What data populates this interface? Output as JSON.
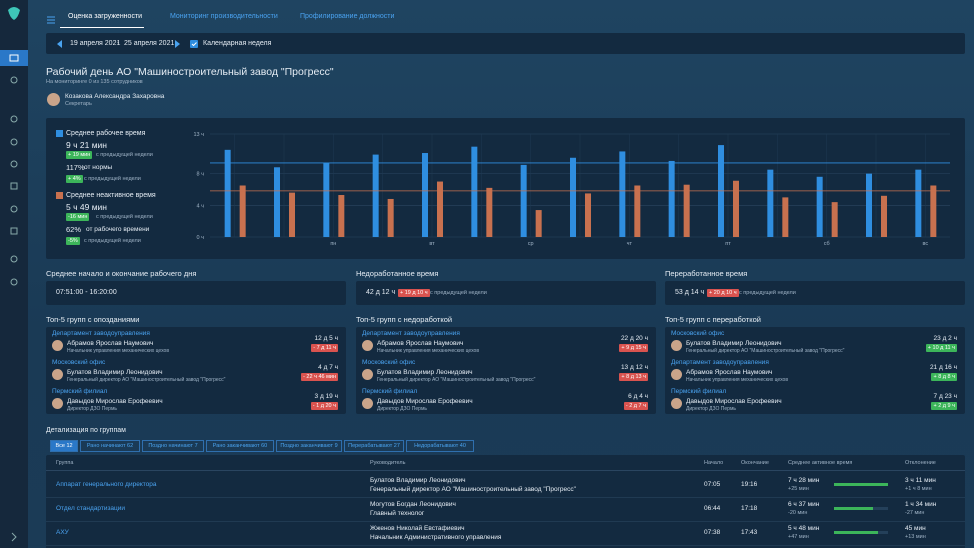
{
  "tabs": [
    "Оценка загруженности",
    "Мониторинг производительности",
    "Профилирование должности"
  ],
  "period": {
    "from": "19 апреля 2021",
    "sep": "-",
    "to": "25 апреля 2021",
    "checkbox": "Календарная неделя"
  },
  "header": {
    "title": "Рабочий день АО \"Машиностроительный завод \"Прогресс\"",
    "subtitle": "На мониторинге 0 из 135 сотрудников",
    "user": "Козакова Александра Захаровна",
    "role": "Секретарь"
  },
  "chart_summary": [
    {
      "value": "9 ч 21 мин",
      "change": "+ 19 мин",
      "change_text": "с предыдущей недели",
      "share": "117%",
      "share_text": "от нормы",
      "share_change": "+ 4%",
      "share_change_text": "с предыдущей недели"
    },
    {
      "value": "5 ч 49 мин",
      "change": "-16 мин",
      "change_text": "с предыдущей недели",
      "share": "62%",
      "share_text": "от рабочего времени",
      "share_change": "-5%",
      "share_change_text": "с предыдущей недели"
    }
  ],
  "chart_data": {
    "type": "bar",
    "categories": [
      null,
      null,
      "пн",
      null,
      "вт",
      null,
      "ср",
      null,
      "чт",
      null,
      "пт",
      null,
      "сб",
      null,
      "вс"
    ],
    "series": [
      {
        "name": "Среднее рабочее время",
        "color": "#2f8ee0",
        "average": 9.35,
        "values": [
          11.0,
          8.8,
          9.4,
          10.4,
          10.6,
          11.4,
          9.1,
          10.0,
          10.8,
          9.6,
          11.6,
          8.5,
          7.6,
          8.0,
          8.5
        ]
      },
      {
        "name": "Среднее неактивное время",
        "color": "#c8714f",
        "average": 5.82,
        "values": [
          6.5,
          5.6,
          5.3,
          4.8,
          7.0,
          6.2,
          3.4,
          5.5,
          6.5,
          6.6,
          7.1,
          5.0,
          4.4,
          5.2,
          6.5
        ]
      }
    ],
    "ylim": [
      0,
      13
    ],
    "yticks": [
      {
        "value": 0,
        "label": "0 ч"
      },
      {
        "value": 4,
        "label": "4 ч"
      },
      {
        "value": 8,
        "label": "8 ч"
      },
      {
        "value": 13,
        "label": "13 ч"
      }
    ],
    "grid": true
  },
  "stats": [
    {
      "title": "Среднее начало и окончание рабочего дня",
      "value": "07:51:00 - 16:20:00"
    },
    {
      "title": "Недоработанное время",
      "value": "42 д 12 ч",
      "change": "+ 19 д 10 ч",
      "change_text": "с предыдущей недели"
    },
    {
      "title": "Переработанное время",
      "value": "53 д 14 ч",
      "change": "+ 20 д 10 ч",
      "change_text": "с предыдущей недели"
    }
  ],
  "top5": [
    {
      "title": "Топ-5 групп с опозданиями",
      "items": [
        {
          "group": "Департамент заводоуправления",
          "name": "Абрамов Ярослав Наумович",
          "position": "Начальник управления механических цехов",
          "value": "12 д 5 ч",
          "change": "- 7 д 11 ч",
          "tone": "negative"
        },
        {
          "group": "Московский офис",
          "name": "Булатов Владимир Леонидович",
          "position": "Генеральный директор АО \"Машиностроительный завод \"Прогресс\"",
          "value": "4 д 7 ч",
          "change": "- 22 ч 46 мин",
          "tone": "negative"
        },
        {
          "group": "Пермский филиал",
          "name": "Давыдов Мирослав Ерофеевич",
          "position": "Директор ДЗО Пермь",
          "value": "3 д 19 ч",
          "change": "- 1 д 20 ч",
          "tone": "negative"
        }
      ]
    },
    {
      "title": "Топ-5 групп с недоработкой",
      "items": [
        {
          "group": "Департамент заводоуправления",
          "name": "Абрамов Ярослав Наумович",
          "position": "Начальник управления механических цехов",
          "value": "22 д 20 ч",
          "change": "+ 9 д 15 ч",
          "tone": "negative"
        },
        {
          "group": "Московский офис",
          "name": "Булатов Владимир Леонидович",
          "position": "Генеральный директор АО \"Машиностроительный завод \"Прогресс\"",
          "value": "13 д 12 ч",
          "change": "+ 8 д 13 ч",
          "tone": "negative"
        },
        {
          "group": "Пермский филиал",
          "name": "Давыдов Мирослав Ерофеевич",
          "position": "Директор ДЗО Пермь",
          "value": "6 д 4 ч",
          "change": "- 2 д 7 ч",
          "tone": "negative"
        }
      ]
    },
    {
      "title": "Топ-5 групп с переработкой",
      "items": [
        {
          "group": "Московский офис",
          "name": "Булатов Владимир Леонидович",
          "position": "Генеральный директор АО \"Машиностроительный завод \"Прогресс\"",
          "value": "23 д 2 ч",
          "change": "+ 10 д 11 ч",
          "tone": "positive"
        },
        {
          "group": "Департамент заводоуправления",
          "name": "Абрамов Ярослав Наумович",
          "position": "Начальник управления механических цехов",
          "value": "21 д 16 ч",
          "change": "+ 8 д 8 ч",
          "tone": "positive"
        },
        {
          "group": "Пермский филиал",
          "name": "Давыдов Мирослав Ерофеевич",
          "position": "Директор ДЗО Пермь",
          "value": "7 д 23 ч",
          "change": "+ 2 д 9 ч",
          "tone": "positive"
        }
      ]
    }
  ],
  "details": {
    "title": "Детализация по группам",
    "filters": [
      "Все 12",
      "Рано начинают 62",
      "Поздно начинают 7",
      "Рано заканчивают 60",
      "Поздно заканчивают 9",
      "Перерабатывают 27",
      "Недорабатывают 40"
    ],
    "columns": [
      "Группа",
      "Руководитель",
      "Начало",
      "Окончание",
      "Среднее активное время",
      "Отклонение"
    ],
    "rows": [
      {
        "group": "Аппарат генерального директора",
        "head": "Булатов Владимир Леонидович",
        "head_position": "Генеральный директор АО \"Машиностроительный завод \"Прогресс\"",
        "start": "07:05",
        "end": "19:16",
        "active": "7 ч 28 мин",
        "active_change": "+25 мин",
        "progress": 100,
        "deviation": "3 ч 11 мин",
        "deviation_change": "+1 ч 8 мин"
      },
      {
        "group": "Отдел стандартизации",
        "head": "Могутов Богдан Леонидович",
        "head_position": "Главный технолог",
        "start": "06:44",
        "end": "17:18",
        "active": "6 ч 37 мин",
        "active_change": "-20 мин",
        "progress": 72,
        "deviation": "1 ч 34 мин",
        "deviation_change": "-27 мин"
      },
      {
        "group": "АХУ",
        "head": "Жженов Николай Евстафиевич",
        "head_position": "Начальник Административного управления",
        "start": "07:38",
        "end": "17:43",
        "active": "5 ч 48 мин",
        "active_change": "+47 мин",
        "progress": 82,
        "deviation": "45 мин",
        "deviation_change": "+13 мин"
      }
    ]
  }
}
